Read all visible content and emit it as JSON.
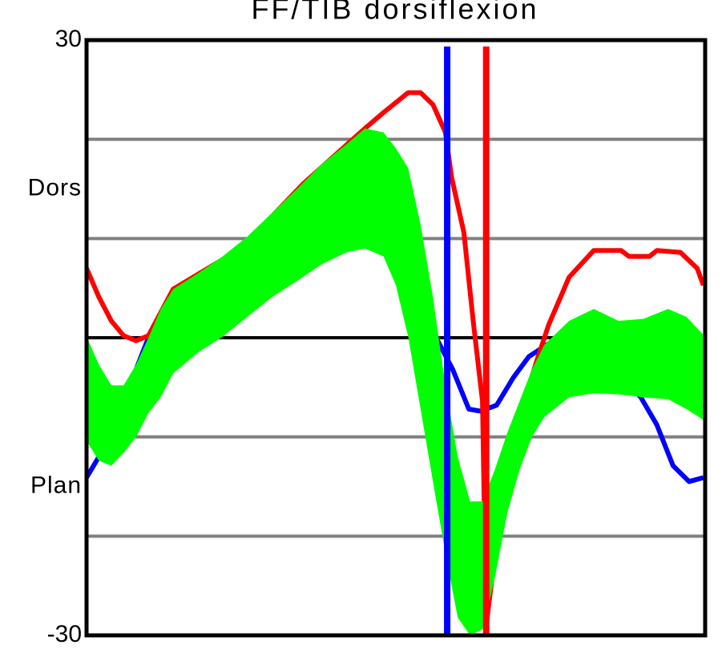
{
  "chart_data": {
    "type": "line",
    "title": "FF/TIB dorsiflexion",
    "annotations": [
      "Dors",
      "Plan"
    ],
    "xlim": [
      0,
      100
    ],
    "ylim": [
      -30,
      30
    ],
    "yticks": [
      -30,
      30
    ],
    "gridlines": [
      -20,
      -10,
      0,
      10,
      20
    ],
    "band": {
      "color": "#00ff00",
      "x": [
        0,
        2,
        4,
        6,
        8,
        10,
        12,
        14,
        18,
        22,
        26,
        30,
        34,
        38,
        42,
        45,
        48,
        50,
        52,
        54,
        56,
        58,
        60,
        62,
        64,
        66,
        68,
        70,
        72,
        74,
        78,
        82,
        86,
        90,
        94,
        97,
        100
      ],
      "upper": [
        0.1,
        -2.7,
        -4.8,
        -4.8,
        -2.7,
        0,
        2.9,
        4.9,
        6.5,
        8.2,
        10.2,
        12.6,
        15.0,
        17.5,
        19.5,
        21.1,
        20.7,
        19.1,
        17.1,
        11.4,
        4.1,
        -4.8,
        -12.0,
        -16.5,
        -16.5,
        -13.3,
        -9.6,
        -6.4,
        -3.2,
        -0.7,
        1.7,
        2.9,
        1.7,
        1.9,
        2.9,
        2.1,
        0.1
      ],
      "lower": [
        -10.4,
        -12.4,
        -12.9,
        -11.6,
        -10.0,
        -7.6,
        -6.0,
        -3.6,
        -1.5,
        0.1,
        2.1,
        4.1,
        5.7,
        7.4,
        8.6,
        9.0,
        8.2,
        5.3,
        0.1,
        -7.2,
        -14.5,
        -21.7,
        -28.2,
        -30,
        -29.4,
        -24.2,
        -17.7,
        -13.3,
        -10.0,
        -8.0,
        -6.0,
        -5.6,
        -5.7,
        -6.0,
        -6.2,
        -7.2,
        -8.4
      ]
    },
    "series": [
      {
        "color": "#0000ff",
        "x": [
          0,
          2,
          8,
          10,
          20,
          30,
          40,
          48,
          54,
          59.2,
          61.8,
          63.7,
          66.3,
          69,
          71.5,
          75.4,
          82,
          89.6,
          92.2,
          94.8,
          97.4,
          99.7
        ],
        "values": [
          -14.1,
          -12.0,
          -3.2,
          0,
          3.0,
          8.5,
          14.0,
          14.5,
          3.0,
          -3.2,
          -7.2,
          -7.4,
          -6.8,
          -4.0,
          -1.9,
          -0.3,
          -1.0,
          -6.0,
          -8.8,
          -12.9,
          -14.5,
          -14.1
        ]
      },
      {
        "color": "#ff0000",
        "x": [
          0,
          2,
          4,
          6,
          8,
          10,
          14,
          25,
          35,
          45,
          48,
          52,
          54,
          56,
          58,
          59,
          61,
          62.5,
          64,
          64.6,
          68,
          72.8,
          74.7,
          78,
          82,
          86.4,
          87.7,
          91,
          92.2,
          96,
          98.7,
          99.7
        ],
        "values": [
          7.0,
          4.1,
          1.7,
          0.2,
          -0.3,
          0.2,
          4.9,
          9.0,
          15.5,
          21.1,
          22.7,
          24.7,
          24.7,
          23.5,
          20.7,
          16.2,
          10.6,
          1.7,
          -6.4,
          -29,
          -12,
          -2.3,
          1.3,
          6.1,
          8.8,
          8.8,
          8.2,
          8.2,
          8.8,
          8.6,
          7.0,
          5.3
        ]
      }
    ],
    "events": [
      {
        "color": "#0000ff",
        "x": 58.3
      },
      {
        "color": "#ff0000",
        "x": 64.6
      }
    ]
  }
}
